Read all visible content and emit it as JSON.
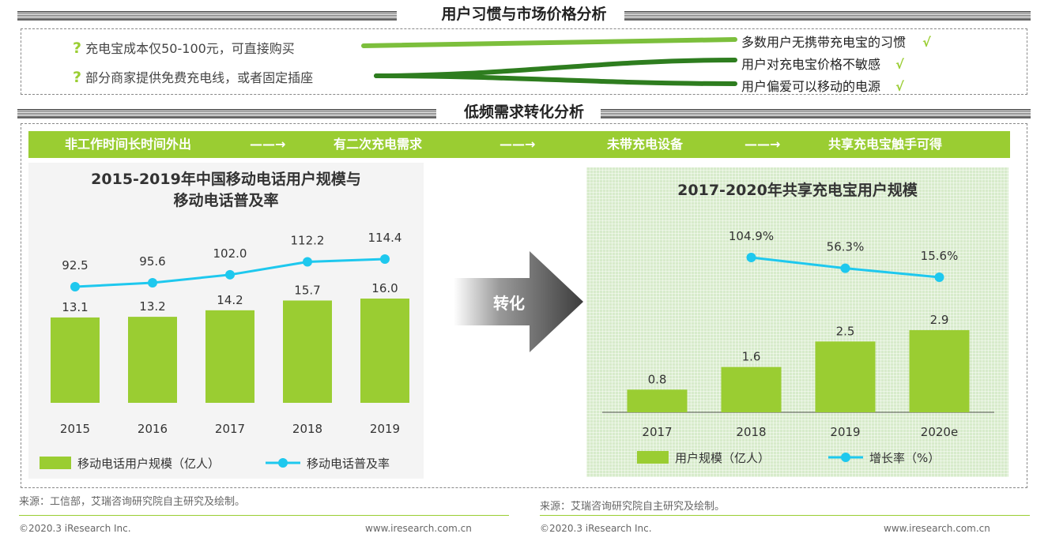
{
  "section1": {
    "title": "用户习惯与市场价格分析"
  },
  "habits": {
    "left": [
      {
        "mark": "?",
        "text": "充电宝成本仅50-100元，可直接购买"
      },
      {
        "mark": "?",
        "text": "部分商家提供免费充电线，或者固定插座"
      }
    ],
    "right": [
      {
        "text": "多数用户无携带充电宝的习惯",
        "check": "√"
      },
      {
        "text": "用户对充电宝价格不敏感",
        "check": "√"
      },
      {
        "text": "用户偏爱可以移动的电源",
        "check": "√"
      }
    ]
  },
  "section2": {
    "title": "低频需求转化分析"
  },
  "flow": {
    "steps": [
      "非工作时间长时间外出",
      "有二次充电需求",
      "未带充电设备",
      "共享充电宝触手可得"
    ],
    "arrow": "——→"
  },
  "transform_label": "转化",
  "colors": {
    "bar": "#9acd32",
    "line": "#1ec8ee",
    "accent_green": "#2e7d1f"
  },
  "chart_data": [
    {
      "type": "bar",
      "title": "2015-2019年中国移动电话用户规模与移动电话普及率",
      "title_lines": [
        "2015-2019年中国移动电话用户规模与",
        "移动电话普及率"
      ],
      "categories": [
        "2015",
        "2016",
        "2017",
        "2018",
        "2019"
      ],
      "series": [
        {
          "name": "移动电话用户规模（亿人）",
          "type": "bar",
          "values": [
            13.1,
            13.2,
            14.2,
            15.7,
            16.0
          ],
          "labels": [
            "13.1",
            "13.2",
            "14.2",
            "15.7",
            "16.0"
          ]
        },
        {
          "name": "移动电话普及率",
          "type": "line",
          "values": [
            92.5,
            95.6,
            102.0,
            112.2,
            114.4
          ],
          "labels": [
            "92.5",
            "95.6",
            "102.0",
            "112.2",
            "114.4"
          ]
        }
      ],
      "legend_position": "bottom",
      "grid": false
    },
    {
      "type": "bar",
      "title": "2017-2020年共享充电宝用户规模",
      "categories": [
        "2017",
        "2018",
        "2019",
        "2020e"
      ],
      "series": [
        {
          "name": "用户规模（亿人）",
          "type": "bar",
          "values": [
            0.8,
            1.6,
            2.5,
            2.9
          ],
          "labels": [
            "0.8",
            "1.6",
            "2.5",
            "2.9"
          ]
        },
        {
          "name": "增长率（%）",
          "type": "line",
          "values": [
            null,
            104.9,
            56.3,
            15.6
          ],
          "labels": [
            "",
            "104.9%",
            "56.3%",
            "15.6%"
          ]
        }
      ],
      "legend_position": "bottom",
      "grid": false
    }
  ],
  "sources": {
    "left": "来源：工信部，艾瑞咨询研究院自主研究及绘制。",
    "right": "来源：艾瑞咨询研究院自主研究及绘制。"
  },
  "footers": {
    "copyright_left": "©2020.3 iResearch Inc.",
    "url_left": "www.iresearch.com.cn",
    "copyright_right": "©2020.3 iResearch Inc.",
    "url_right": "www.iresearch.com.cn"
  }
}
